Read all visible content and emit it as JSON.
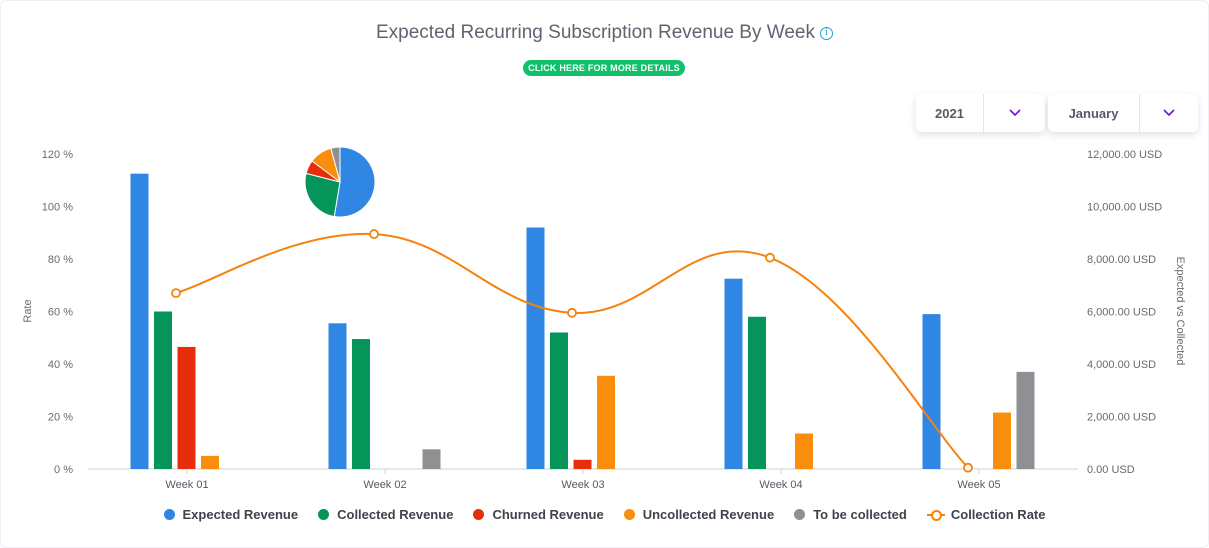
{
  "header": {
    "title": "Expected Recurring Subscription Revenue By Week",
    "info_icon": "info-icon",
    "details_button": "CLICK HERE FOR MORE DETAILS"
  },
  "filters": {
    "year": "2021",
    "month": "January"
  },
  "colors": {
    "expected": "#2f86e3",
    "collected": "#05955a",
    "churned": "#e72e0a",
    "uncollected": "#fa8d0b",
    "to_be_collected": "#8e9093",
    "collection_rate": "#f5820e",
    "button": "#10c06b"
  },
  "chart_data": {
    "type": "bar",
    "categories": [
      "Week 01",
      "Week 02",
      "Week 03",
      "Week 04",
      "Week 05"
    ],
    "y_left": {
      "label": "Rate",
      "min": 0,
      "max": 120,
      "ticks": [
        "0 %",
        "20 %",
        "40 %",
        "60 %",
        "80 %",
        "100 %",
        "120 %"
      ]
    },
    "y_right": {
      "label": "Expected vs Collected",
      "min": 0,
      "max": 12000,
      "ticks": [
        "0.00 USD",
        "2,000.00 USD",
        "4,000.00 USD",
        "6,000.00 USD",
        "8,000.00 USD",
        "10,000.00 USD",
        "12,000.00 USD"
      ]
    },
    "series": [
      {
        "name": "Expected Revenue",
        "axis": "right",
        "values": [
          11250,
          5550,
          9200,
          7250,
          5900
        ]
      },
      {
        "name": "Collected Revenue",
        "axis": "right",
        "values": [
          6000,
          4950,
          5200,
          5800,
          0
        ]
      },
      {
        "name": "Churned Revenue",
        "axis": "right",
        "values": [
          4650,
          0,
          350,
          0,
          0
        ]
      },
      {
        "name": "Uncollected Revenue",
        "axis": "right",
        "values": [
          500,
          0,
          3550,
          1350,
          2150
        ]
      },
      {
        "name": "To be collected",
        "axis": "right",
        "values": [
          0,
          750,
          0,
          0,
          3700
        ]
      }
    ],
    "line": {
      "name": "Collection Rate",
      "axis": "left",
      "values": [
        67,
        89.5,
        59.5,
        80.5,
        0.5
      ]
    },
    "pie": {
      "values": [
        50,
        25,
        6,
        10,
        4
      ]
    },
    "grid": false,
    "legend_position": "bottom"
  }
}
